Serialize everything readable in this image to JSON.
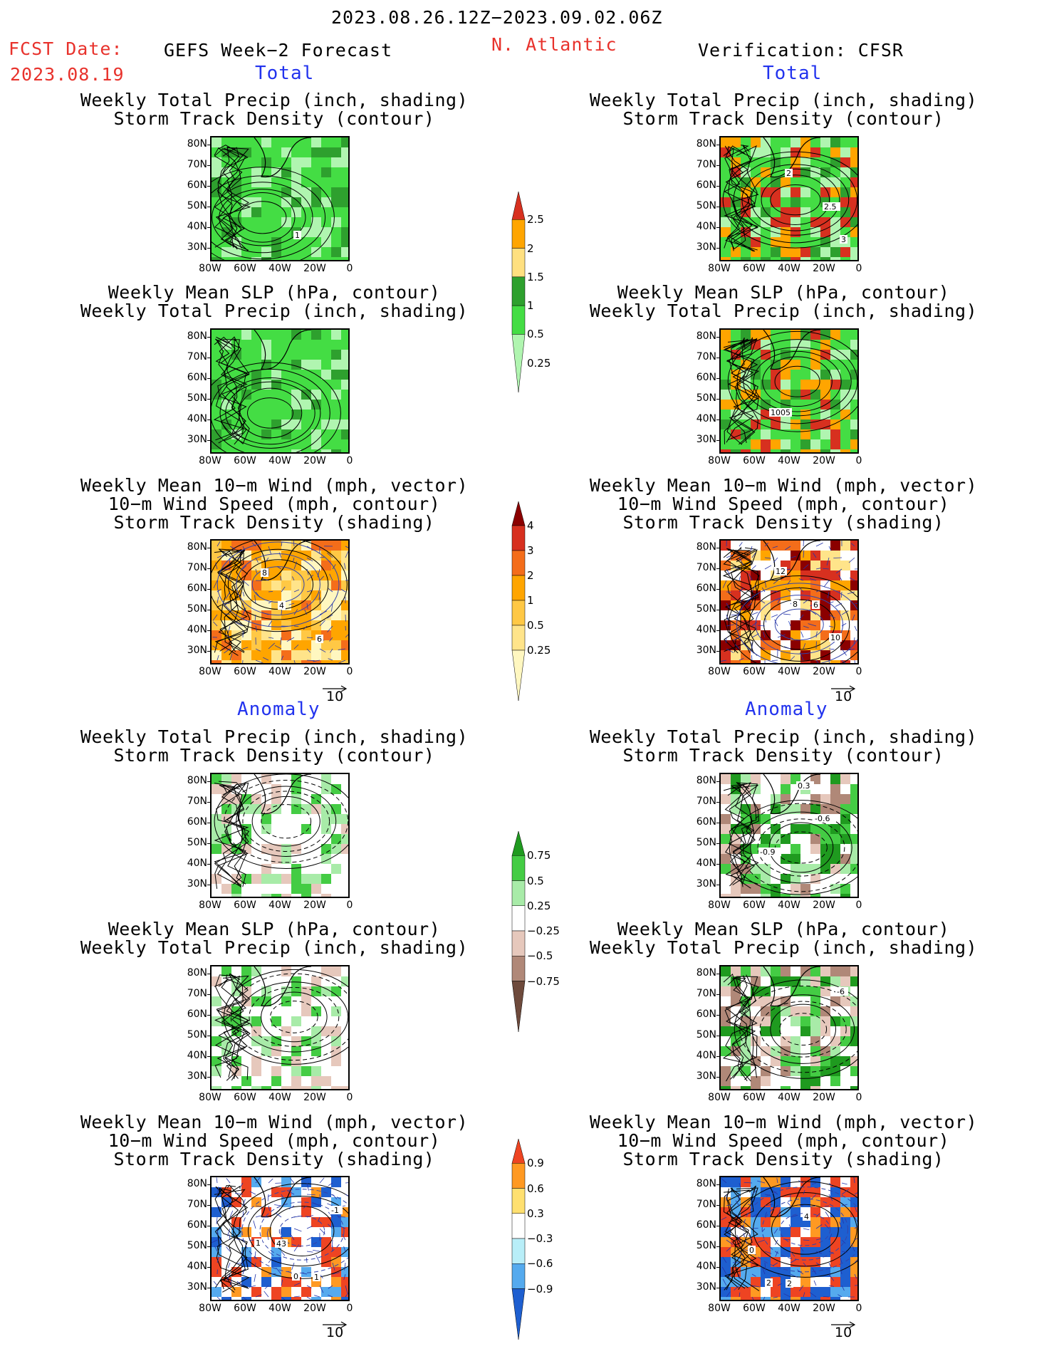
{
  "header": {
    "date_range": "2023.08.26.12Z−2023.09.02.06Z",
    "fcst_label": "FCST Date:",
    "fcst_date": "2023.08.19",
    "model": "GEFS Week−2 Forecast",
    "region": "N. Atlantic",
    "verification": "Verification: CFSR"
  },
  "sections": {
    "total": "Total",
    "anomaly": "Anomaly"
  },
  "titles": {
    "precip_storm": [
      "Weekly Total Precip (inch, shading)",
      "Storm Track Density (contour)"
    ],
    "slp_precip": [
      "Weekly Mean SLP (hPa, contour)",
      "Weekly Total Precip (inch, shading)"
    ],
    "wind": [
      "Weekly Mean 10−m Wind (mph, vector)",
      "10−m Wind Speed (mph, contour)",
      "Storm Track Density (shading)"
    ]
  },
  "axes": {
    "lat": [
      "80N",
      "70N",
      "60N",
      "50N",
      "40N",
      "30N"
    ],
    "lon": [
      "80W",
      "60W",
      "40W",
      "20W",
      "0"
    ]
  },
  "vector_ref": "10",
  "colorbars": {
    "precip_total": {
      "labels": [
        "2.5",
        "2",
        "1.5",
        "1",
        "0.5",
        "0.25"
      ],
      "colors": [
        "#d7301f",
        "#ffa500",
        "#ffe080",
        "#2ea02e",
        "#44dd44",
        "#b0f5b0"
      ]
    },
    "storm_total": {
      "labels": [
        "4",
        "3",
        "2",
        "1",
        "0.5",
        "0.25"
      ],
      "colors": [
        "#8b0000",
        "#d7301f",
        "#f46d1a",
        "#ffa500",
        "#ffc845",
        "#ffe48a",
        "#fff7c0"
      ]
    },
    "precip_anom": {
      "labels": [
        "0.75",
        "0.5",
        "0.25",
        "−0.25",
        "−0.5",
        "−0.75"
      ],
      "colors": [
        "#1f9a1f",
        "#44cc44",
        "#a8eba8",
        "#ffffff",
        "#e6c8bc",
        "#b08878",
        "#6e4a3c"
      ]
    },
    "storm_anom": {
      "labels": [
        "0.9",
        "0.6",
        "0.3",
        "−0.3",
        "−0.6",
        "−0.9"
      ],
      "colors": [
        "#ee4422",
        "#ff9922",
        "#ffe070",
        "#ffffff",
        "#b8eef8",
        "#55aaee",
        "#1e5fd0"
      ]
    }
  },
  "contour_labels": {
    "fc_precip": [
      "1"
    ],
    "obs_precip": [
      "3",
      "2",
      "2.5"
    ],
    "obs_slp": [
      "1005"
    ],
    "fc_wind": [
      "4",
      "6",
      "8"
    ],
    "obs_wind": [
      "8",
      "10",
      "12",
      "6"
    ],
    "obs_anom_precip": [
      "-0.6",
      "-0.9",
      "0.3"
    ],
    "obs_anom_slp": [
      "-6"
    ],
    "fc_anom_wind": [
      "1",
      "0",
      "-1",
      "43",
      "1"
    ],
    "obs_anom_wind": [
      "2",
      "4",
      "0",
      "2"
    ]
  }
}
